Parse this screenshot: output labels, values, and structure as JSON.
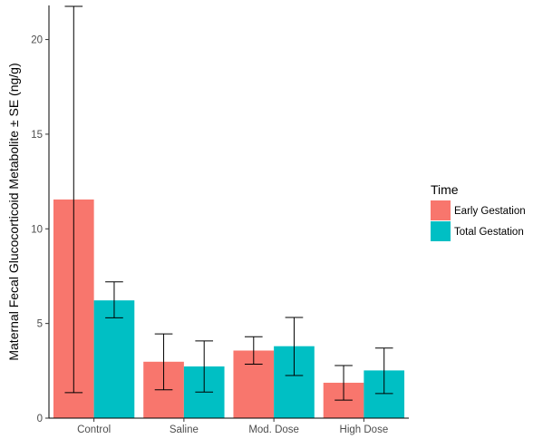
{
  "chart_data": {
    "type": "bar",
    "categories": [
      "Control",
      "Saline",
      "Mod. Dose",
      "High Dose"
    ],
    "series": [
      {
        "name": "Early Gestation",
        "color": "#F8766D",
        "values": [
          11.55,
          2.98,
          3.57,
          1.87
        ],
        "error_low": [
          1.35,
          1.5,
          2.85,
          0.95
        ],
        "error_high": [
          21.75,
          4.45,
          4.3,
          2.78
        ]
      },
      {
        "name": "Total Gestation",
        "color": "#00BFC4",
        "values": [
          6.22,
          2.73,
          3.8,
          2.52
        ],
        "error_low": [
          5.3,
          1.38,
          2.25,
          1.3
        ],
        "error_high": [
          7.2,
          4.08,
          5.32,
          3.7
        ]
      }
    ],
    "title": "",
    "xlabel": "",
    "ylabel": "Maternal Fecal Glucocorticoid Metabolite ± SE (ng/g)",
    "ylim": [
      0,
      21.8
    ],
    "yticks": [
      0,
      5,
      10,
      15,
      20
    ],
    "legend": {
      "title": "Time",
      "placement": "right"
    },
    "grid": false
  }
}
